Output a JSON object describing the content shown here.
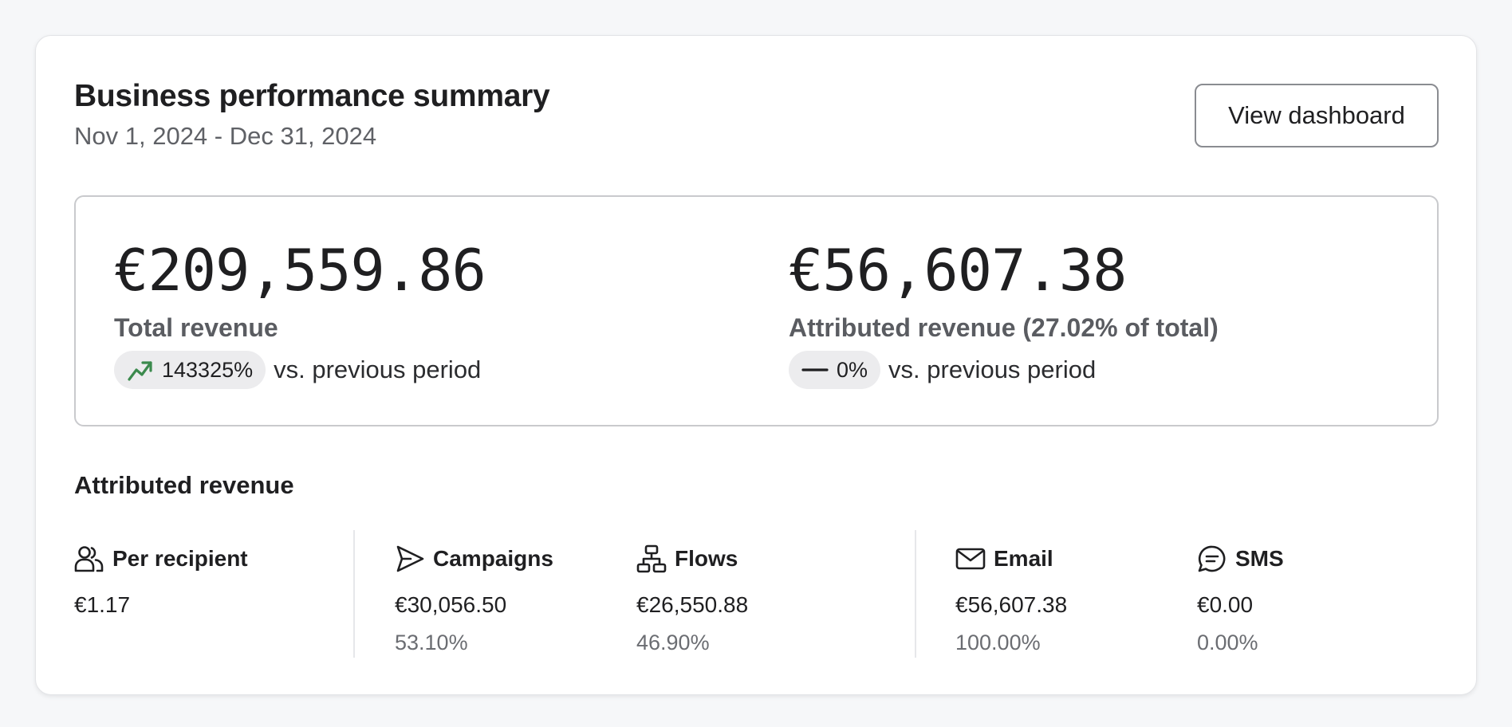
{
  "header": {
    "title": "Business performance summary",
    "date_range": "Nov 1, 2024 - Dec 31, 2024",
    "dashboard_button": "View dashboard"
  },
  "kpis": {
    "total": {
      "value": "€209,559.86",
      "label": "Total revenue",
      "change": "143325%",
      "trend_icon": "trending-up-icon",
      "trend_color": "#3b8a4d",
      "vs_text": "vs. previous period"
    },
    "attributed": {
      "value": "€56,607.38",
      "label": "Attributed revenue (27.02% of total)",
      "change": "0%",
      "trend_icon": "dash-icon",
      "vs_text": "vs. previous period"
    }
  },
  "attributed_section": {
    "title": "Attributed revenue",
    "stats": [
      {
        "icon": "people-icon",
        "label": "Per recipient",
        "value": "€1.17"
      },
      {
        "icon": "send-icon",
        "label": "Campaigns",
        "value": "€30,056.50",
        "percent": "53.10%"
      },
      {
        "icon": "flow-icon",
        "label": "Flows",
        "value": "€26,550.88",
        "percent": "46.90%"
      },
      {
        "icon": "mail-icon",
        "label": "Email",
        "value": "€56,607.38",
        "percent": "100.00%"
      },
      {
        "icon": "chat-icon",
        "label": "SMS",
        "value": "€0.00",
        "percent": "0.00%"
      }
    ]
  }
}
